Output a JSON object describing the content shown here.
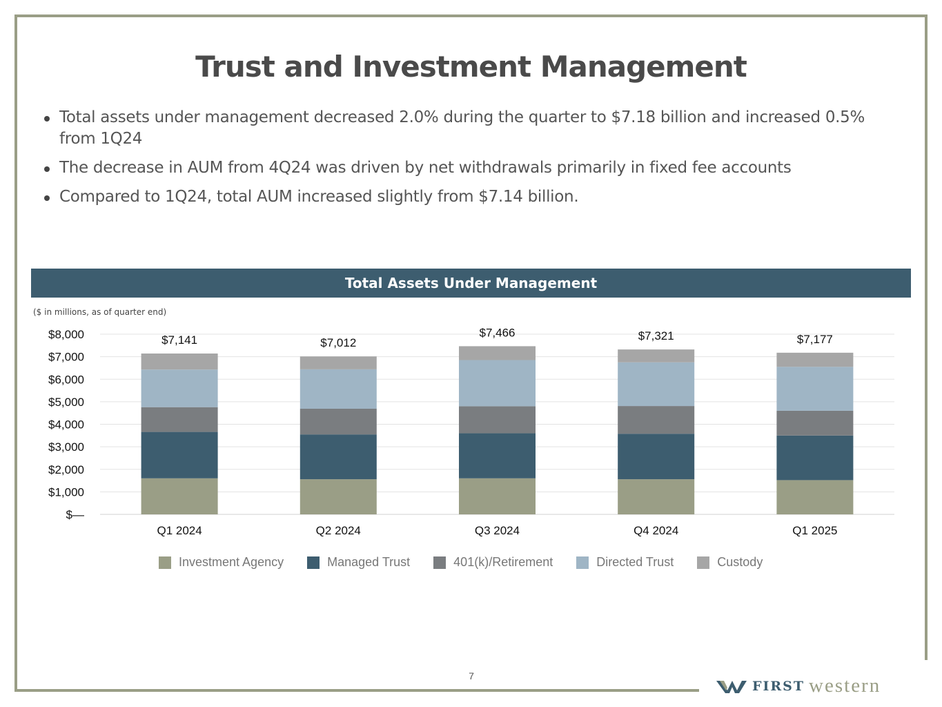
{
  "title": "Trust and Investment Management",
  "bullets": [
    "Total assets under management decreased 2.0% during the quarter to $7.18 billion and increased 0.5% from 1Q24",
    "The decrease in AUM from 4Q24 was driven by net withdrawals primarily in fixed fee accounts",
    "Compared to 1Q24, total AUM increased slightly from $7.14 billion."
  ],
  "chart_header": "Total Assets Under Management",
  "chart_units": "($ in millions, as of quarter end)",
  "page_number": "7",
  "logo": {
    "first": "FIRST",
    "western": "western"
  },
  "colors": {
    "investment_agency": "#9a9e86",
    "managed_trust": "#3d5d6f",
    "retirement": "#7a7d80",
    "directed_trust": "#9fb5c5",
    "custody": "#a6a6a6",
    "frame": "#9a9e86"
  },
  "chart_data": {
    "type": "bar",
    "stacked": true,
    "categories": [
      "Q1 2024",
      "Q2 2024",
      "Q3 2024",
      "Q4 2024",
      "Q1 2025"
    ],
    "series": [
      {
        "name": "Investment Agency",
        "values": [
          1600,
          1560,
          1600,
          1560,
          1520
        ]
      },
      {
        "name": "Managed Trust",
        "values": [
          2060,
          1990,
          2000,
          2020,
          1980
        ]
      },
      {
        "name": "401(k)/Retirement",
        "values": [
          1100,
          1140,
          1200,
          1230,
          1100
        ]
      },
      {
        "name": "Directed Trust",
        "values": [
          1670,
          1750,
          2050,
          1940,
          1950
        ]
      },
      {
        "name": "Custody",
        "values": [
          711,
          572,
          616,
          571,
          627
        ]
      }
    ],
    "totals": [
      7141,
      7012,
      7466,
      7321,
      7177
    ],
    "total_labels": [
      "$7,141",
      "$7,012",
      "$7,466",
      "$7,321",
      "$7,177"
    ],
    "y_tick_values": [
      0,
      1000,
      2000,
      3000,
      4000,
      5000,
      6000,
      7000,
      8000
    ],
    "y_tick_labels": [
      "$—",
      "$1,000",
      "$2,000",
      "$3,000",
      "$4,000",
      "$5,000",
      "$6,000",
      "$7,000",
      "$8,000"
    ],
    "ylim": [
      0,
      8000
    ],
    "grid": true,
    "legend_position": "bottom",
    "title": "Total Assets Under Management",
    "xlabel": "",
    "ylabel": "$ in millions"
  }
}
